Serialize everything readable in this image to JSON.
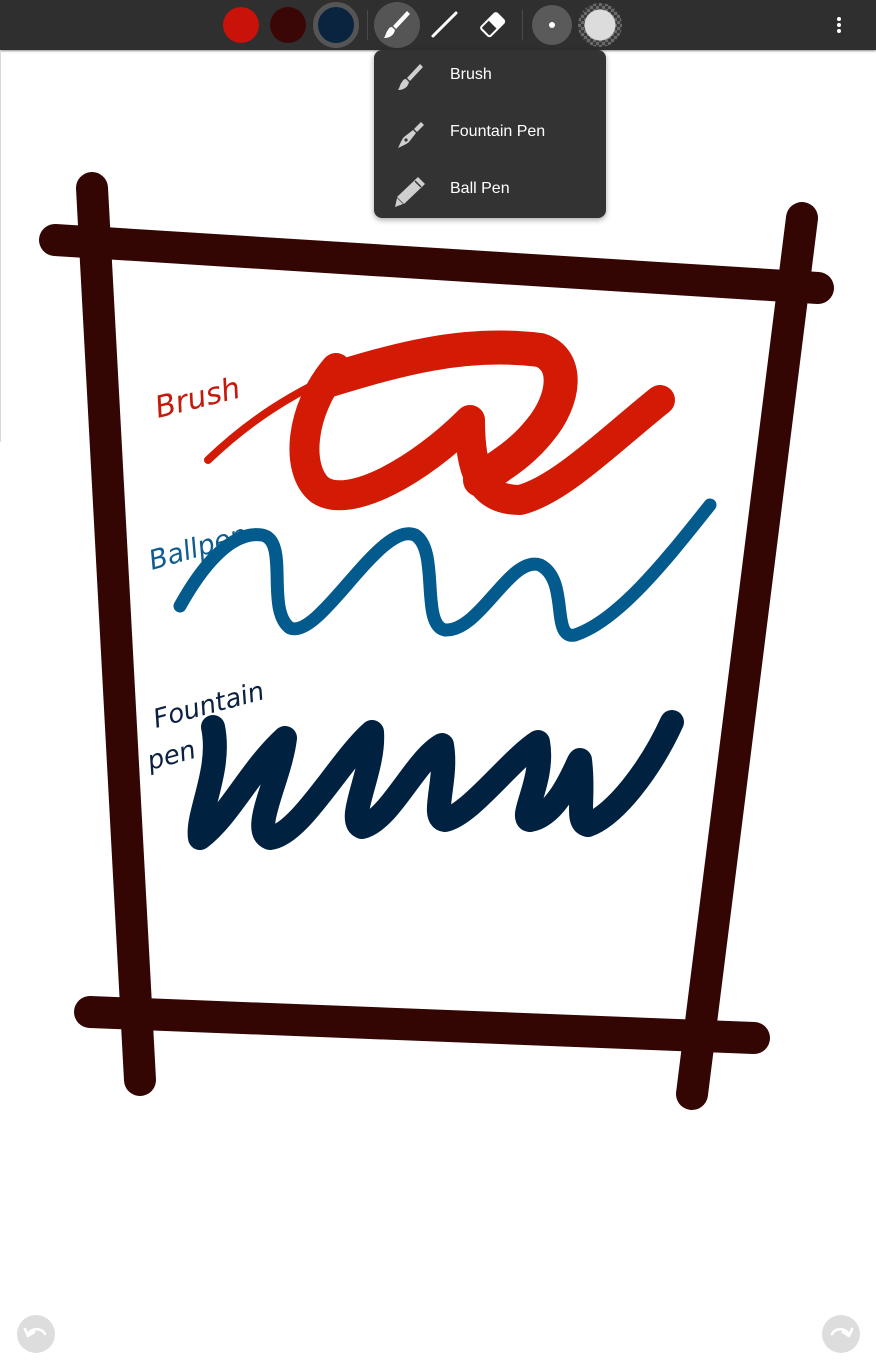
{
  "toolbar": {
    "colors": [
      {
        "name": "red",
        "hex": "#c8120a",
        "selected": false
      },
      {
        "name": "dark-maroon",
        "hex": "#3a0706",
        "selected": false
      },
      {
        "name": "navy",
        "hex": "#0a2440",
        "selected": true
      }
    ],
    "tools": [
      {
        "name": "brush-tool",
        "icon": "brush-icon",
        "active": true
      },
      {
        "name": "line-tool",
        "icon": "line-icon",
        "active": false
      },
      {
        "name": "eraser-tool",
        "icon": "eraser-icon",
        "active": false
      }
    ],
    "sizes": [
      {
        "name": "small-size",
        "icon": "small-dot-icon"
      },
      {
        "name": "large-size",
        "icon": "large-dot-icon"
      }
    ],
    "more_icon": "more-vert-icon"
  },
  "brush_menu": {
    "items": [
      {
        "label": "Brush",
        "icon": "brush-icon"
      },
      {
        "label": "Fountain Pen",
        "icon": "fountain-pen-icon"
      },
      {
        "label": "Ball Pen",
        "icon": "ball-pen-icon"
      }
    ]
  },
  "canvas": {
    "frame_color": "#330604",
    "labels": [
      {
        "text": "Brush",
        "color": "#c41a0c"
      },
      {
        "text": "Ballpen",
        "color": "#0f5d8e"
      },
      {
        "text": "Fountain",
        "color": "#0c2141"
      },
      {
        "text": "pen",
        "color": "#0c2141"
      }
    ],
    "strokes": [
      {
        "name": "brush-stroke",
        "color": "#d31a04"
      },
      {
        "name": "ballpen-stroke",
        "color": "#035a8c"
      },
      {
        "name": "fountain-pen-stroke",
        "color": "#00213f"
      }
    ]
  },
  "footer": {
    "undo_icon": "undo-icon",
    "redo_icon": "redo-icon"
  }
}
